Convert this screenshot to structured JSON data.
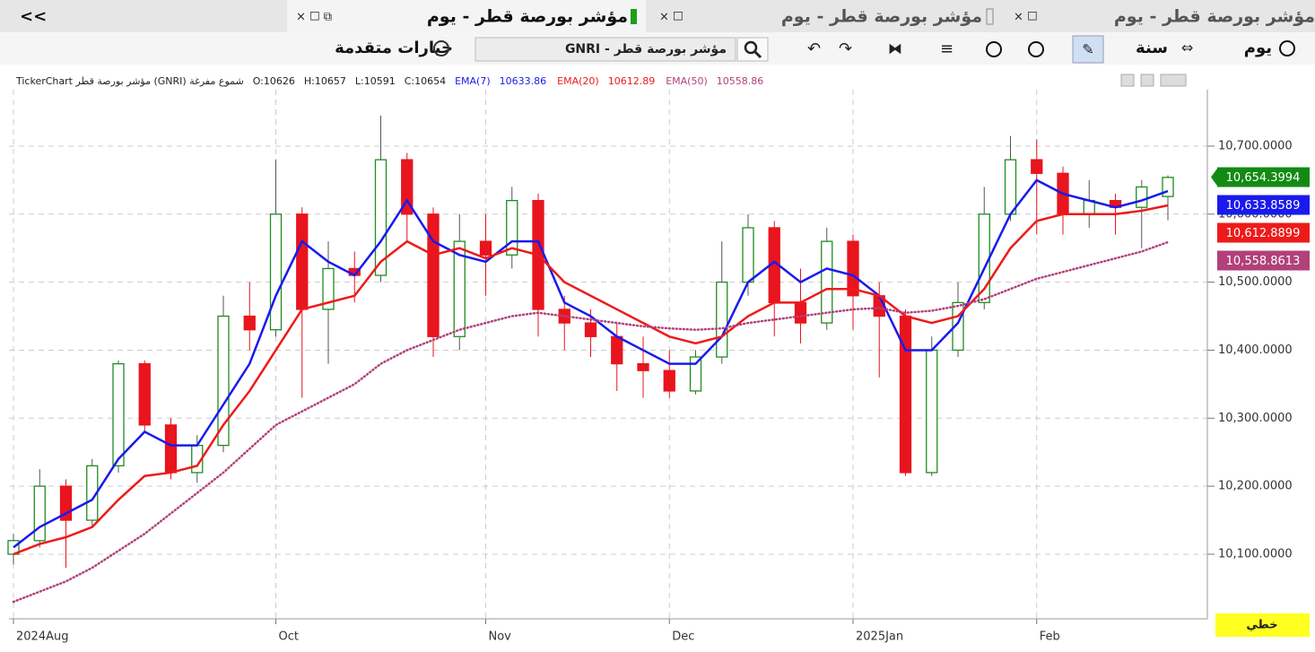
{
  "tabs": {
    "collapse": "<<",
    "items": [
      "مؤشر بورصة قطر - يوم",
      "مؤشر بورصة قطر - يوم",
      "مؤشر بورصة قطر - يوم"
    ]
  },
  "toolbar": {
    "advanced": "خيارات متقدمة",
    "search": "GNRI - مؤشر بورصة قطر",
    "year": "سنة",
    "day": "يوم"
  },
  "info": {
    "prefix": "TickerChart مؤشر بورصة قطر (GNRI) شموع مفرغة",
    "o": "O:",
    "h": "H:",
    "l": "L:",
    "c": "C:"
  },
  "footer": {
    "mode": "خطي"
  },
  "chart_data": {
    "type": "candlestick",
    "categories": [
      "2024Aug",
      null,
      null,
      null,
      null,
      null,
      null,
      null,
      null,
      null,
      "Oct",
      null,
      null,
      null,
      null,
      null,
      null,
      null,
      "Nov",
      null,
      null,
      null,
      null,
      null,
      null,
      "Dec",
      null,
      null,
      null,
      null,
      null,
      null,
      "2025Jan",
      null,
      null,
      null,
      null,
      null,
      null,
      "Feb",
      null,
      null,
      null,
      null,
      null
    ],
    "open": [
      10100,
      10120,
      10200,
      10150,
      10230,
      10380,
      10290,
      10220,
      10260,
      10450,
      10430,
      10600,
      10460,
      10520,
      10510,
      10680,
      10600,
      10420,
      10560,
      10540,
      10620,
      10460,
      10440,
      10420,
      10380,
      10370,
      10340,
      10390,
      10500,
      10580,
      10470,
      10440,
      10560,
      10480,
      10450,
      10220,
      10400,
      10470,
      10600,
      10680,
      10660,
      10600,
      10620,
      10610,
      10626
    ],
    "high": [
      10130,
      10225,
      10210,
      10240,
      10385,
      10385,
      10300,
      10275,
      10480,
      10500,
      10680,
      10610,
      10560,
      10545,
      10745,
      10690,
      10610,
      10600,
      10600,
      10640,
      10630,
      10480,
      10460,
      10440,
      10420,
      10400,
      10400,
      10560,
      10600,
      10590,
      10520,
      10580,
      10570,
      10500,
      10460,
      10420,
      10500,
      10640,
      10715,
      10710,
      10670,
      10650,
      10630,
      10650,
      10657
    ],
    "low": [
      10085,
      10110,
      10080,
      10140,
      10220,
      10280,
      10210,
      10205,
      10250,
      10400,
      10420,
      10330,
      10380,
      10470,
      10500,
      10560,
      10390,
      10400,
      10480,
      10520,
      10420,
      10400,
      10390,
      10340,
      10330,
      10330,
      10335,
      10380,
      10480,
      10420,
      10410,
      10430,
      10430,
      10360,
      10215,
      10215,
      10390,
      10460,
      10590,
      10570,
      10570,
      10580,
      10570,
      10550,
      10591
    ],
    "close": [
      10120,
      10200,
      10150,
      10230,
      10380,
      10290,
      10220,
      10260,
      10450,
      10430,
      10600,
      10460,
      10520,
      10510,
      10680,
      10600,
      10420,
      10560,
      10540,
      10620,
      10460,
      10440,
      10420,
      10380,
      10370,
      10340,
      10390,
      10500,
      10580,
      10470,
      10440,
      10560,
      10480,
      10450,
      10220,
      10400,
      10470,
      10600,
      10680,
      10660,
      10600,
      10620,
      10610,
      10640,
      10654
    ],
    "up_color": "#1e8c1e",
    "down_color": "#e8141e",
    "last_price": 10654.3994,
    "last_price_label": "10,654.3994",
    "last_price_color": "#138a13",
    "series": [
      {
        "name": "EMA(7)",
        "color": "#1a1aee",
        "style": "solid",
        "legend_value": 10633.86,
        "last_value": 10633.8589,
        "last_label": "10,633.8589",
        "values": [
          10110,
          10140,
          10160,
          10180,
          10240,
          10280,
          10260,
          10260,
          10320,
          10380,
          10480,
          10560,
          10530,
          10510,
          10560,
          10620,
          10560,
          10540,
          10530,
          10560,
          10560,
          10470,
          10450,
          10420,
          10400,
          10380,
          10380,
          10420,
          10500,
          10530,
          10500,
          10520,
          10510,
          10480,
          10400,
          10400,
          10440,
          10520,
          10600,
          10650,
          10630,
          10620,
          10610,
          10620,
          10633.86
        ]
      },
      {
        "name": "EMA(20)",
        "color": "#ee1a1a",
        "style": "solid",
        "legend_value": 10612.89,
        "last_value": 10612.8899,
        "last_label": "10,612.8899",
        "values": [
          10100,
          10115,
          10125,
          10140,
          10180,
          10215,
          10220,
          10230,
          10290,
          10340,
          10400,
          10460,
          10470,
          10480,
          10530,
          10560,
          10540,
          10550,
          10535,
          10550,
          10540,
          10500,
          10480,
          10460,
          10440,
          10420,
          10410,
          10420,
          10450,
          10470,
          10470,
          10490,
          10490,
          10480,
          10450,
          10440,
          10450,
          10490,
          10550,
          10590,
          10600,
          10600,
          10600,
          10605,
          10612.89
        ]
      },
      {
        "name": "EMA(50)",
        "color": "#b2407a",
        "style": "dotted",
        "legend_value": 10558.86,
        "last_value": 10558.8613,
        "last_label": "10,558.8613",
        "values": [
          10030,
          10045,
          10060,
          10080,
          10105,
          10130,
          10160,
          10190,
          10220,
          10255,
          10290,
          10310,
          10330,
          10350,
          10380,
          10400,
          10415,
          10430,
          10440,
          10450,
          10455,
          10450,
          10445,
          10440,
          10435,
          10432,
          10430,
          10432,
          10440,
          10445,
          10450,
          10455,
          10460,
          10462,
          10455,
          10458,
          10465,
          10475,
          10490,
          10505,
          10515,
          10525,
          10535,
          10545,
          10558.86
        ]
      }
    ],
    "ylim": [
      10005,
      10783
    ],
    "yticks": [
      {
        "value": 10100,
        "label": "10,100.0000"
      },
      {
        "value": 10200,
        "label": "10,200.0000"
      },
      {
        "value": 10300,
        "label": "10,300.0000"
      },
      {
        "value": 10400,
        "label": "10,400.0000"
      },
      {
        "value": 10500,
        "label": "10,500.0000"
      },
      {
        "value": 10600,
        "label": "10,600.0000"
      },
      {
        "value": 10700,
        "label": "10,700.0000"
      }
    ],
    "grid": true
  }
}
